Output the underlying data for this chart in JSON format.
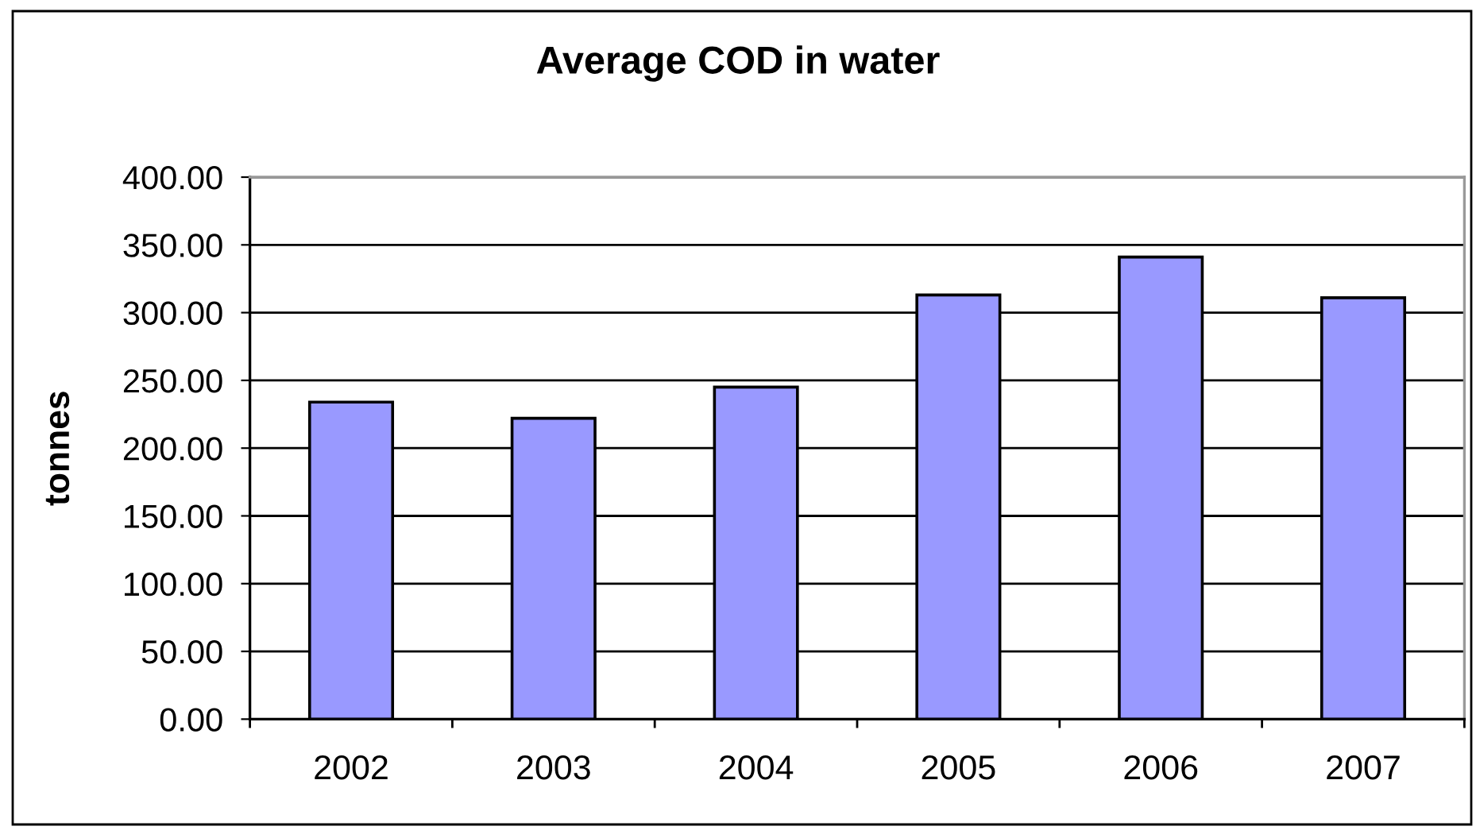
{
  "chart_data": {
    "type": "bar",
    "title": "Average COD in water",
    "ylabel": "tonnes",
    "categories": [
      "2002",
      "2003",
      "2004",
      "2005",
      "2006",
      "2007"
    ],
    "values": [
      234,
      222,
      245,
      313,
      341,
      311
    ],
    "color": "#9999ff",
    "ylim": [
      0,
      400
    ],
    "yticks": [
      {
        "value": 0,
        "label": "0.00"
      },
      {
        "value": 50,
        "label": "50.00"
      },
      {
        "value": 100,
        "label": "100.00"
      },
      {
        "value": 150,
        "label": "150.00"
      },
      {
        "value": 200,
        "label": "200.00"
      },
      {
        "value": 250,
        "label": "250.00"
      },
      {
        "value": 300,
        "label": "300.00"
      },
      {
        "value": 350,
        "label": "350.00"
      },
      {
        "value": 400,
        "label": "400.00"
      }
    ],
    "grid": "y"
  }
}
